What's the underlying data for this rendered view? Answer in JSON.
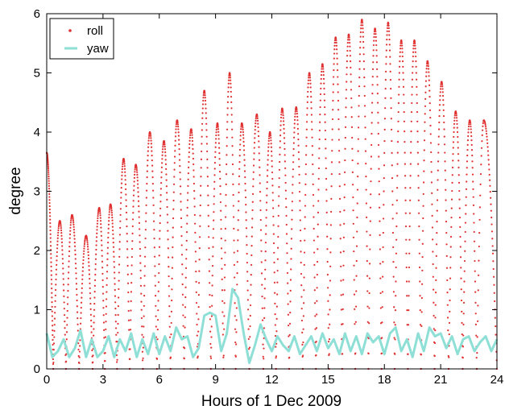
{
  "chart_data": {
    "type": "scatter",
    "title": "",
    "xlabel": "Hours of 1 Dec 2009",
    "ylabel": "degree",
    "xlim": [
      0,
      24
    ],
    "ylim": [
      0,
      6
    ],
    "xticks": [
      0,
      3,
      6,
      9,
      12,
      15,
      18,
      21,
      24
    ],
    "yticks": [
      0,
      1,
      2,
      3,
      4,
      5,
      6
    ],
    "grid": false,
    "legend": {
      "position": "top-left",
      "entries": [
        "roll",
        "yaw"
      ]
    },
    "series": [
      {
        "name": "roll",
        "style": "dots",
        "color": "#e03030",
        "peaks": [
          [
            0.0,
            3.65
          ],
          [
            0.7,
            2.5
          ],
          [
            1.35,
            2.6
          ],
          [
            2.1,
            2.25
          ],
          [
            2.8,
            2.72
          ],
          [
            3.4,
            2.78
          ],
          [
            4.1,
            3.55
          ],
          [
            4.75,
            3.45
          ],
          [
            5.5,
            4.0
          ],
          [
            6.25,
            3.85
          ],
          [
            6.95,
            4.2
          ],
          [
            7.7,
            4.05
          ],
          [
            8.4,
            4.7
          ],
          [
            9.1,
            4.15
          ],
          [
            9.75,
            5.0
          ],
          [
            10.4,
            4.15
          ],
          [
            11.2,
            4.3
          ],
          [
            11.9,
            4.0
          ],
          [
            12.55,
            4.4
          ],
          [
            13.3,
            4.42
          ],
          [
            14.0,
            5.0
          ],
          [
            14.7,
            5.15
          ],
          [
            15.4,
            5.6
          ],
          [
            16.1,
            5.65
          ],
          [
            16.8,
            5.9
          ],
          [
            17.5,
            5.75
          ],
          [
            18.2,
            5.85
          ],
          [
            18.9,
            5.55
          ],
          [
            19.6,
            5.55
          ],
          [
            20.3,
            5.2
          ],
          [
            21.05,
            4.85
          ],
          [
            21.8,
            4.35
          ],
          [
            22.55,
            4.2
          ],
          [
            23.3,
            4.2
          ]
        ]
      },
      {
        "name": "yaw",
        "style": "line",
        "color": "#8edfd6",
        "points": [
          [
            0.0,
            0.6
          ],
          [
            0.3,
            0.2
          ],
          [
            0.6,
            0.3
          ],
          [
            0.9,
            0.5
          ],
          [
            1.2,
            0.2
          ],
          [
            1.5,
            0.35
          ],
          [
            1.8,
            0.65
          ],
          [
            2.1,
            0.2
          ],
          [
            2.4,
            0.5
          ],
          [
            2.7,
            0.2
          ],
          [
            3.0,
            0.3
          ],
          [
            3.3,
            0.55
          ],
          [
            3.6,
            0.2
          ],
          [
            3.9,
            0.5
          ],
          [
            4.2,
            0.3
          ],
          [
            4.5,
            0.6
          ],
          [
            4.8,
            0.2
          ],
          [
            5.1,
            0.5
          ],
          [
            5.4,
            0.25
          ],
          [
            5.7,
            0.6
          ],
          [
            6.0,
            0.25
          ],
          [
            6.3,
            0.55
          ],
          [
            6.6,
            0.3
          ],
          [
            6.9,
            0.7
          ],
          [
            7.2,
            0.5
          ],
          [
            7.5,
            0.55
          ],
          [
            7.8,
            0.2
          ],
          [
            8.1,
            0.35
          ],
          [
            8.4,
            0.9
          ],
          [
            8.7,
            0.95
          ],
          [
            9.0,
            0.9
          ],
          [
            9.3,
            0.3
          ],
          [
            9.6,
            0.6
          ],
          [
            9.9,
            1.35
          ],
          [
            10.2,
            1.2
          ],
          [
            10.5,
            0.6
          ],
          [
            10.8,
            0.1
          ],
          [
            11.1,
            0.4
          ],
          [
            11.4,
            0.75
          ],
          [
            11.7,
            0.5
          ],
          [
            12.0,
            0.3
          ],
          [
            12.3,
            0.55
          ],
          [
            12.6,
            0.4
          ],
          [
            12.9,
            0.3
          ],
          [
            13.2,
            0.55
          ],
          [
            13.5,
            0.25
          ],
          [
            13.8,
            0.4
          ],
          [
            14.1,
            0.55
          ],
          [
            14.4,
            0.3
          ],
          [
            14.7,
            0.6
          ],
          [
            15.0,
            0.35
          ],
          [
            15.3,
            0.5
          ],
          [
            15.6,
            0.25
          ],
          [
            15.9,
            0.6
          ],
          [
            16.2,
            0.3
          ],
          [
            16.5,
            0.55
          ],
          [
            16.8,
            0.25
          ],
          [
            17.1,
            0.6
          ],
          [
            17.4,
            0.45
          ],
          [
            17.7,
            0.55
          ],
          [
            18.0,
            0.25
          ],
          [
            18.3,
            0.6
          ],
          [
            18.6,
            0.7
          ],
          [
            18.9,
            0.3
          ],
          [
            19.2,
            0.5
          ],
          [
            19.5,
            0.2
          ],
          [
            19.8,
            0.6
          ],
          [
            20.1,
            0.3
          ],
          [
            20.4,
            0.7
          ],
          [
            20.7,
            0.55
          ],
          [
            21.0,
            0.6
          ],
          [
            21.3,
            0.35
          ],
          [
            21.6,
            0.55
          ],
          [
            21.9,
            0.25
          ],
          [
            22.2,
            0.5
          ],
          [
            22.5,
            0.55
          ],
          [
            22.8,
            0.3
          ],
          [
            23.1,
            0.45
          ],
          [
            23.4,
            0.55
          ],
          [
            23.7,
            0.3
          ],
          [
            24.0,
            0.5
          ]
        ]
      }
    ]
  }
}
